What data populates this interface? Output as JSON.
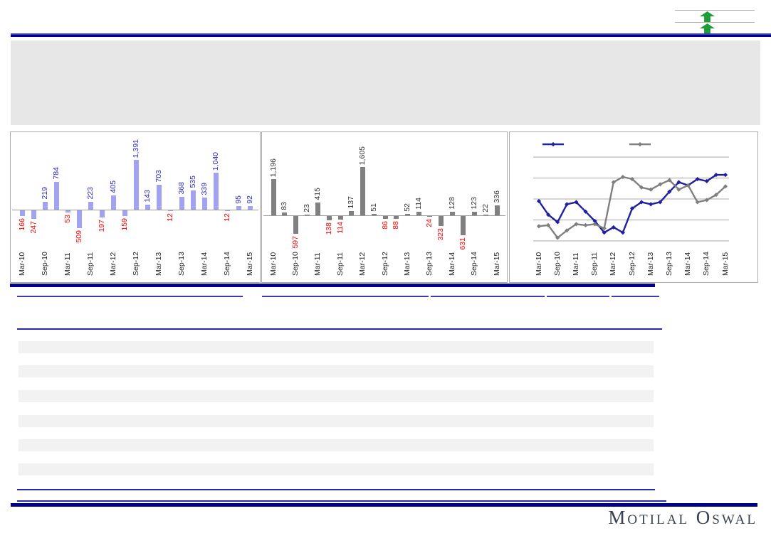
{
  "header": {
    "up_arrows": {
      "icon": "green-up-arrow",
      "count": 2,
      "color": "#1e9c35"
    },
    "banner_color": "#e7e7e7",
    "rule_color": "#00008b"
  },
  "chart_data": [
    {
      "id": "quarterly-bar-blue",
      "type": "bar",
      "title": "",
      "categories": [
        "Mar-10",
        "Jun-10",
        "Sep-10",
        "Dec-10",
        "Mar-11",
        "Jun-11",
        "Sep-11",
        "Dec-11",
        "Mar-12",
        "Jun-12",
        "Sep-12",
        "Dec-12",
        "Mar-13",
        "Jun-13",
        "Sep-13",
        "Dec-13",
        "Mar-14",
        "Jun-14",
        "Sep-14",
        "Dec-14",
        "Mar-15"
      ],
      "values": [
        -166,
        -247,
        219,
        784,
        -53,
        -509,
        223,
        -197,
        405,
        -159,
        1391,
        143,
        703,
        -12,
        368,
        535,
        339,
        1040,
        -12,
        95,
        92
      ],
      "tick_every": 2,
      "ylim": [
        -600,
        1500
      ],
      "grid": false,
      "bar_color": "#a2a2f2",
      "label_color_positive": "#2929c4",
      "label_color_negative": "#ff0000",
      "axis_label_color": "#262626"
    },
    {
      "id": "quarterly-bar-gray",
      "type": "bar",
      "title": "",
      "categories": [
        "Mar-10",
        "Jun-10",
        "Sep-10",
        "Dec-10",
        "Mar-11",
        "Jun-11",
        "Sep-11",
        "Dec-11",
        "Mar-12",
        "Jun-12",
        "Sep-12",
        "Dec-12",
        "Mar-13",
        "Jun-13",
        "Sep-13",
        "Dec-13",
        "Mar-14",
        "Jun-14",
        "Sep-14",
        "Dec-14",
        "Mar-15"
      ],
      "values": [
        1196,
        83,
        -597,
        23,
        415,
        -138,
        -114,
        137,
        1605,
        51,
        -86,
        -88,
        52,
        114,
        -24,
        -323,
        128,
        -631,
        123,
        22,
        336
      ],
      "tick_every": 2,
      "ylim": [
        -700,
        1700
      ],
      "grid": false,
      "bar_color": "#808080",
      "label_color_positive": "#333333",
      "label_color_negative": "#ff0000",
      "axis_label_color": "#262626"
    },
    {
      "id": "trend-lines",
      "type": "line",
      "title": "",
      "categories": [
        "Mar-10",
        "Jun-10",
        "Sep-10",
        "Dec-10",
        "Mar-11",
        "Jun-11",
        "Sep-11",
        "Dec-11",
        "Mar-12",
        "Jun-12",
        "Sep-12",
        "Dec-12",
        "Mar-13",
        "Jun-13",
        "Sep-13",
        "Dec-13",
        "Mar-14",
        "Jun-14",
        "Sep-14",
        "Dec-14",
        "Mar-15"
      ],
      "tick_every": 2,
      "ylim": [
        0,
        5
      ],
      "grid": true,
      "gridline_color": "#a8a8a8",
      "legend_position": "top",
      "legend_labels_visible": false,
      "series": [
        {
          "name": "blue-series",
          "label": "",
          "color": "#20209e",
          "marker": "diamond",
          "values": [
            1.9,
            1.25,
            0.9,
            1.75,
            1.85,
            1.4,
            0.95,
            0.4,
            0.65,
            0.4,
            1.55,
            1.85,
            1.75,
            1.85,
            2.35,
            2.8,
            2.65,
            2.95,
            2.85,
            3.15,
            3.15
          ]
        },
        {
          "name": "gray-series",
          "label": "",
          "color": "#7f7f7f",
          "marker": "diamond",
          "values": [
            0.7,
            0.75,
            0.15,
            0.5,
            0.8,
            0.75,
            0.8,
            0.6,
            2.8,
            3.05,
            2.95,
            2.55,
            2.45,
            2.7,
            2.9,
            2.45,
            2.65,
            1.85,
            1.95,
            2.2,
            2.6
          ]
        }
      ]
    }
  ],
  "table": {
    "header_segments": 5,
    "empty_rows": 6,
    "stripe_color": "#f2f2f2"
  },
  "footer": {
    "brand": "Motilal Oswal",
    "brand_color": "#37424e"
  }
}
